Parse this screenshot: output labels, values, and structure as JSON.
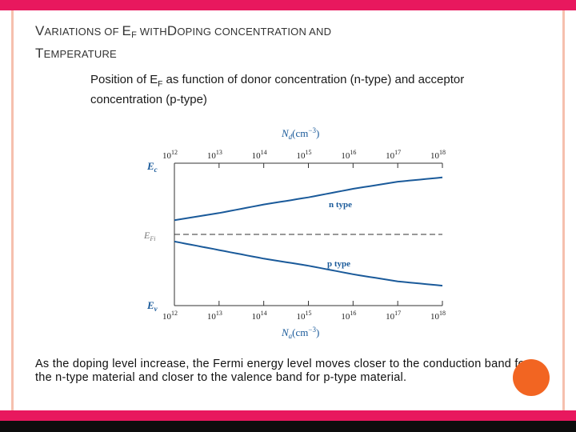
{
  "slide": {
    "title_parts": [
      {
        "big": "V",
        "small": "ARIATIONS OF "
      },
      {
        "big": "E",
        "sub": "F",
        "small": " WITH"
      },
      {
        "big": "D",
        "small": "OPING CONCENTRATION AND "
      }
    ],
    "title_line2": {
      "big": "T",
      "small": "EMPERATURE"
    },
    "diagram_caption": "Position of E",
    "diagram_caption_sub": "F",
    "diagram_caption_rest": " as function of donor concentration (n-type) and acceptor concentration (p-type)",
    "conclusion": "As the doping level increase, the Fermi energy level moves closer to the conduction band for the n-type material and closer to the valence band for p-type material."
  },
  "diagram": {
    "top_axis_label": "N",
    "top_axis_label_sub": "d",
    "top_axis_unit": "(cm",
    "top_axis_exp": "−3",
    "top_axis_close": ")",
    "bottom_axis_label": "N",
    "bottom_axis_label_sub": "a",
    "bottom_axis_unit": "(cm",
    "bottom_axis_exp": "−3",
    "bottom_axis_close": ")",
    "top_ticks": [
      "10",
      "10",
      "10",
      "10",
      "10",
      "10",
      "10"
    ],
    "top_exps": [
      "12",
      "13",
      "14",
      "15",
      "16",
      "17",
      "18"
    ],
    "bottom_ticks": [
      "10",
      "10",
      "10",
      "10",
      "10",
      "10",
      "10"
    ],
    "bottom_exps": [
      "12",
      "13",
      "14",
      "15",
      "16",
      "17",
      "18"
    ],
    "ec_label": "E",
    "ec_sub": "c",
    "efi_label": "E",
    "efi_sub": "Fi",
    "ev_label": "E",
    "ev_sub": "v",
    "n_type_label": "n type",
    "p_type_label": "p type",
    "colors": {
      "curve": "#1a5a9a",
      "axis": "#333333",
      "label_blue": "#1a5a9a"
    }
  },
  "chart_data": {
    "type": "line",
    "x_scale": "log",
    "x": [
      1000000000000.0,
      10000000000000.0,
      100000000000000.0,
      1000000000000000.0,
      1e+16,
      1e+17,
      1e+18
    ],
    "series": [
      {
        "name": "n type",
        "values": [
          0.6,
          0.65,
          0.71,
          0.76,
          0.82,
          0.87,
          0.9
        ]
      },
      {
        "name": "p type",
        "values": [
          0.45,
          0.39,
          0.33,
          0.28,
          0.22,
          0.17,
          0.14
        ]
      }
    ],
    "ylim": [
      0,
      1
    ],
    "grid": false
  }
}
